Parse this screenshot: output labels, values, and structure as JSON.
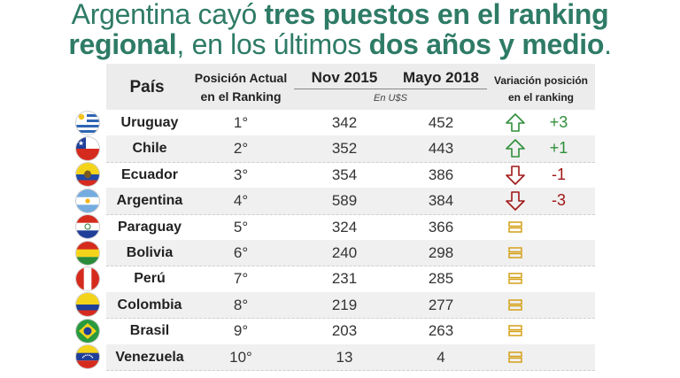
{
  "headline": {
    "line1_normal": "Argentina cayó ",
    "line1_bold": "tres puestos en el ranking",
    "line2_bold1": "regional",
    "line2_normal": ", en los últimos ",
    "line2_bold2": "dos años y medio",
    "line2_end": "."
  },
  "colors": {
    "headline": "#2e7b66",
    "up": "#2f8f3a",
    "down": "#a01818",
    "equal": "#d4a017"
  },
  "chart_data": {
    "type": "table",
    "columns": {
      "pais": "País",
      "posicion_line1": "Posición Actual",
      "posicion_line2": "en el Ranking",
      "nov": "Nov 2015",
      "mayo": "Mayo 2018",
      "unit": "En U$S",
      "variacion_line1": "Variación posición",
      "variacion_line2": "en el ranking"
    },
    "rows": [
      {
        "pais": "Uruguay",
        "posicion": "1°",
        "nov": "342",
        "mayo": "452",
        "trend": "up",
        "variacion": "+3",
        "flag": "uruguay-flag-icon"
      },
      {
        "pais": "Chile",
        "posicion": "2°",
        "nov": "352",
        "mayo": "443",
        "trend": "up",
        "variacion": "+1",
        "flag": "chile-flag-icon"
      },
      {
        "pais": "Ecuador",
        "posicion": "3°",
        "nov": "354",
        "mayo": "386",
        "trend": "down",
        "variacion": "-1",
        "flag": "ecuador-flag-icon"
      },
      {
        "pais": "Argentina",
        "posicion": "4°",
        "nov": "589",
        "mayo": "384",
        "trend": "down",
        "variacion": "-3",
        "flag": "argentina-flag-icon"
      },
      {
        "pais": "Paraguay",
        "posicion": "5°",
        "nov": "324",
        "mayo": "366",
        "trend": "equal",
        "variacion": "",
        "flag": "paraguay-flag-icon"
      },
      {
        "pais": "Bolivia",
        "posicion": "6°",
        "nov": "240",
        "mayo": "298",
        "trend": "equal",
        "variacion": "",
        "flag": "bolivia-flag-icon"
      },
      {
        "pais": "Perú",
        "posicion": "7°",
        "nov": "231",
        "mayo": "285",
        "trend": "equal",
        "variacion": "",
        "flag": "peru-flag-icon"
      },
      {
        "pais": "Colombia",
        "posicion": "8°",
        "nov": "219",
        "mayo": "277",
        "trend": "equal",
        "variacion": "",
        "flag": "colombia-flag-icon"
      },
      {
        "pais": "Brasil",
        "posicion": "9°",
        "nov": "203",
        "mayo": "263",
        "trend": "equal",
        "variacion": "",
        "flag": "brasil-flag-icon"
      },
      {
        "pais": "Venezuela",
        "posicion": "10°",
        "nov": "13",
        "mayo": "4",
        "trend": "equal",
        "variacion": "",
        "flag": "venezuela-flag-icon"
      }
    ]
  }
}
